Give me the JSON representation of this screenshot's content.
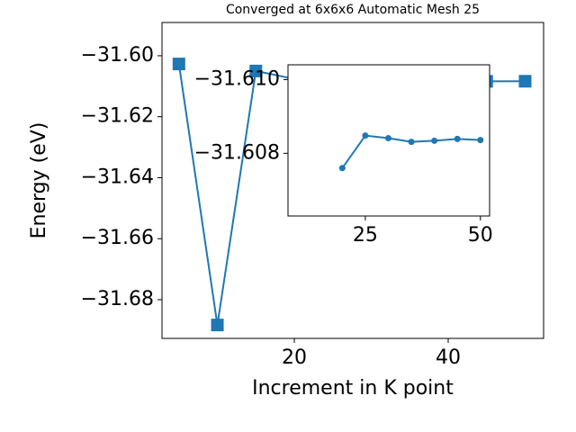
{
  "chart_data": [
    {
      "type": "line",
      "title": "Converged at 6x6x6 Automatic Mesh 25",
      "xlabel": "Increment in K point",
      "ylabel": "Energy (eV)",
      "x": [
        5,
        10,
        15,
        20,
        25,
        30,
        35,
        40,
        45,
        50
      ],
      "series": [
        {
          "name": "Energy",
          "color": "#1f77b4",
          "marker": "square",
          "values": [
            -31.6027,
            -31.6883,
            -31.605,
            -31.6076,
            -31.60848,
            -31.60841,
            -31.60831,
            -31.60834,
            -31.60839,
            -31.60836
          ]
        }
      ],
      "xlim": [
        2.8,
        52.4
      ],
      "xticks": [
        20,
        40
      ],
      "ylim": [
        -31.6927,
        -31.5891
      ],
      "yticks": [
        {
          "value": -31.6,
          "label": "−31.60"
        },
        {
          "value": -31.62,
          "label": "−31.62"
        },
        {
          "value": -31.64,
          "label": "−31.64"
        },
        {
          "value": -31.66,
          "label": "−31.66"
        },
        {
          "value": -31.68,
          "label": "−31.68"
        }
      ]
    },
    {
      "type": "line",
      "x": [
        20,
        25,
        30,
        35,
        40,
        45,
        50
      ],
      "series": [
        {
          "name": "Energy",
          "color": "#1f77b4",
          "marker": "circle",
          "values": [
            -31.6076,
            -31.60848,
            -31.60841,
            -31.60831,
            -31.60834,
            -31.60839,
            -31.60836
          ]
        }
      ],
      "xlim": [
        8.2,
        52
      ],
      "xticks": [
        25,
        50
      ],
      "ylim": [
        -31.6063,
        -31.6104
      ],
      "yticks": [
        {
          "value": -31.61,
          "label": "−31.610"
        },
        {
          "value": -31.608,
          "label": "−31.608"
        }
      ]
    }
  ]
}
